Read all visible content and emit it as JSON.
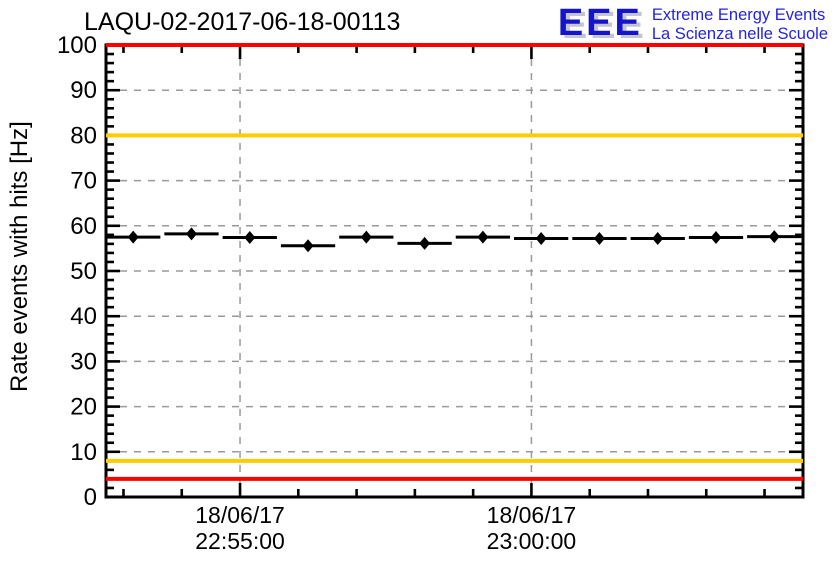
{
  "title": "LAQU-02-2017-06-18-00113",
  "logo": {
    "eee": "EEE",
    "line1": "Extreme Energy Events",
    "line2": "La Scienza nelle Scuole",
    "text_color": "#2424dd",
    "mark_color": "#1414cc",
    "shadow_color": "#c5c5cf"
  },
  "chart_data": {
    "type": "scatter",
    "title": "LAQU-02-2017-06-18-00113",
    "xlabel": "",
    "ylabel": "Rate events with hits [Hz]",
    "ylim": [
      0,
      100
    ],
    "y_major_step": 10,
    "y_minor_step": 2,
    "x_minutes_range": [
      -2.3,
      9.66
    ],
    "x_minor_step_minutes": 1,
    "bin_width_minutes": 1,
    "grid": true,
    "grid_color": "#9a9a9a",
    "frame_color": "#000000",
    "marker": "filled-diamond",
    "marker_color": "#000000",
    "x_major_ticks": [
      {
        "offset_min": 0,
        "date": "18/06/17",
        "time": "22:55:00"
      },
      {
        "offset_min": 5,
        "date": "18/06/17",
        "time": "23:00:00"
      }
    ],
    "hlines": [
      {
        "y": 100,
        "color": "#ff0000",
        "name": "alarm-level-high"
      },
      {
        "y": 80,
        "color": "#ffcc00",
        "name": "warning-level-high"
      },
      {
        "y": 8,
        "color": "#ffcc00",
        "name": "warning-level-low"
      },
      {
        "y": 4,
        "color": "#ff0000",
        "name": "alarm-level-low"
      }
    ],
    "points": [
      {
        "time": "22:53:10",
        "offset_min": -1.833,
        "rate": 57.5
      },
      {
        "time": "22:54:10",
        "offset_min": -0.833,
        "rate": 58.2
      },
      {
        "time": "22:55:10",
        "offset_min": 0.167,
        "rate": 57.4
      },
      {
        "time": "22:56:10",
        "offset_min": 1.167,
        "rate": 55.6
      },
      {
        "time": "22:57:10",
        "offset_min": 2.167,
        "rate": 57.5
      },
      {
        "time": "22:58:10",
        "offset_min": 3.167,
        "rate": 56.1
      },
      {
        "time": "22:59:10",
        "offset_min": 4.167,
        "rate": 57.5
      },
      {
        "time": "23:00:10",
        "offset_min": 5.167,
        "rate": 57.2
      },
      {
        "time": "23:01:10",
        "offset_min": 6.167,
        "rate": 57.2
      },
      {
        "time": "23:02:10",
        "offset_min": 7.167,
        "rate": 57.2
      },
      {
        "time": "23:03:10",
        "offset_min": 8.167,
        "rate": 57.4
      },
      {
        "time": "23:04:10",
        "offset_min": 9.167,
        "rate": 57.6
      }
    ]
  }
}
